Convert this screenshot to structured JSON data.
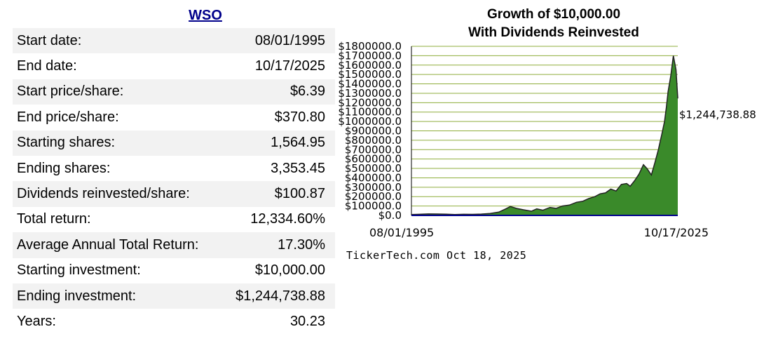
{
  "ticker": "WSO",
  "stats": [
    {
      "label": "Start date:",
      "value": "08/01/1995"
    },
    {
      "label": "End date:",
      "value": "10/17/2025"
    },
    {
      "label": "Start price/share:",
      "value": "$6.39"
    },
    {
      "label": "End price/share:",
      "value": "$370.80"
    },
    {
      "label": "Starting shares:",
      "value": "1,564.95"
    },
    {
      "label": "Ending shares:",
      "value": "3,353.45"
    },
    {
      "label": "Dividends reinvested/share:",
      "value": "$100.87"
    },
    {
      "label": "Total return:",
      "value": "12,334.60%"
    },
    {
      "label": "Average Annual Total Return:",
      "value": "17.30%"
    },
    {
      "label": "Starting investment:",
      "value": "$10,000.00"
    },
    {
      "label": "Ending investment:",
      "value": "$1,244,738.88"
    },
    {
      "label": "Years:",
      "value": "30.23"
    }
  ],
  "credit": "TickerTech.com  Oct 18, 2025",
  "chart_data": {
    "type": "area",
    "title_line1": "Growth of $10,000.00",
    "title_line2": "With Dividends Reinvested",
    "x_start_label": "08/01/1995",
    "x_end_label": "10/17/2025",
    "end_value_label": "$1,244,738.88",
    "ylim": [
      0,
      1800000
    ],
    "y_ticks": [
      {
        "value": 0,
        "label": "$0.0"
      },
      {
        "value": 100000,
        "label": "$100000.0"
      },
      {
        "value": 200000,
        "label": "$200000.0"
      },
      {
        "value": 300000,
        "label": "$300000.0"
      },
      {
        "value": 400000,
        "label": "$400000.0"
      },
      {
        "value": 500000,
        "label": "$500000.0"
      },
      {
        "value": 600000,
        "label": "$600000.0"
      },
      {
        "value": 700000,
        "label": "$700000.0"
      },
      {
        "value": 800000,
        "label": "$800000.0"
      },
      {
        "value": 900000,
        "label": "$900000.0"
      },
      {
        "value": 1000000,
        "label": "$1000000.0"
      },
      {
        "value": 1100000,
        "label": "$1100000.0"
      },
      {
        "value": 1200000,
        "label": "$1200000.0"
      },
      {
        "value": 1300000,
        "label": "$1300000.0"
      },
      {
        "value": 1400000,
        "label": "$1400000.0"
      },
      {
        "value": 1500000,
        "label": "$1500000.0"
      },
      {
        "value": 1600000,
        "label": "$1600000.0"
      },
      {
        "value": 1700000,
        "label": "$1700000.0"
      },
      {
        "value": 1800000,
        "label": "$1800000.0"
      }
    ],
    "grid": true,
    "colors": {
      "fill": "#3a8a2a",
      "line": "#222222",
      "grid": "#8fae3c",
      "axis": "#00008b",
      "plot_bg": "#ffffff"
    },
    "series": [
      {
        "x": [
          1995.58,
          1996.5,
          1997.5,
          1998.5,
          1999.5,
          2000.5,
          2001.5,
          2002.5,
          2003.5,
          2004.5,
          2005.5,
          2006.3,
          2006.8,
          2007.5,
          2008.3,
          2009.2,
          2009.8,
          2010.5,
          2011.3,
          2012.0,
          2012.7,
          2013.5,
          2014.3,
          2015.0,
          2015.7,
          2016.4,
          2017.0,
          2017.6,
          2018.2,
          2018.8,
          2019.4,
          2020.0,
          2020.4,
          2020.9,
          2021.4,
          2021.9,
          2022.3,
          2022.8,
          2023.2,
          2023.6,
          2024.0,
          2024.3,
          2024.5,
          2024.7,
          2025.0,
          2025.3,
          2025.6,
          2025.8
        ],
        "y": [
          10000,
          12000,
          16000,
          15000,
          13000,
          10000,
          12000,
          11000,
          14000,
          20000,
          35000,
          70000,
          95000,
          75000,
          60000,
          45000,
          70000,
          55000,
          85000,
          75000,
          100000,
          110000,
          140000,
          150000,
          180000,
          200000,
          230000,
          240000,
          280000,
          260000,
          330000,
          340000,
          310000,
          370000,
          440000,
          540000,
          500000,
          430000,
          560000,
          700000,
          870000,
          1000000,
          1150000,
          1320000,
          1480000,
          1700000,
          1550000,
          1244738.88
        ]
      }
    ]
  }
}
